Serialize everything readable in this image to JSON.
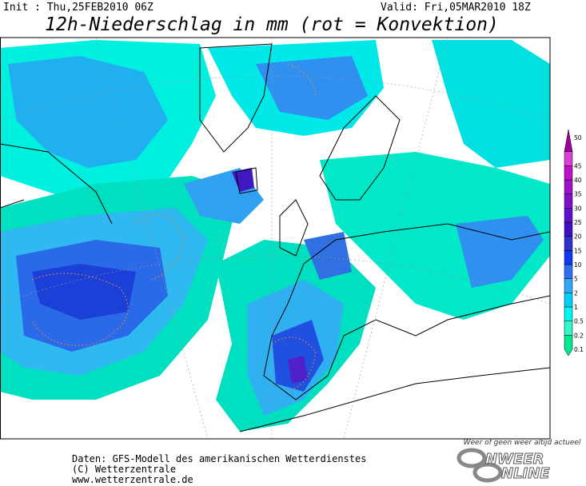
{
  "header": {
    "init": "Init : Thu,25FEB2010 06Z",
    "valid": "Valid: Fri,05MAR2010 18Z",
    "title": "12h-Niederschlag in mm (rot = Konvektion)"
  },
  "legend": {
    "levels": [
      "0.1",
      "0.2",
      "0.5",
      "1",
      "2",
      "5",
      "10",
      "15",
      "20",
      "25",
      "30",
      "35",
      "40",
      "45",
      "50"
    ],
    "colors": [
      "#00e890",
      "#30f8c8",
      "#00f8f0",
      "#00d0f8",
      "#30a8f8",
      "#3070f0",
      "#1038f0",
      "#3030c8",
      "#4010c0",
      "#6010c8",
      "#8010c8",
      "#a010c8",
      "#c010c8",
      "#d840d8",
      "#9a009a"
    ]
  },
  "footer": {
    "line1": "Daten: GFS-Modell des amerikanischen Wetterdienstes",
    "line2": "(C) Wetterzentrale",
    "line3": "www.wetterzentrale.de"
  },
  "logo": {
    "tagline": "Weer of geen weer altijd actueel",
    "word1": "NWEER",
    "word2": "NLINE"
  }
}
